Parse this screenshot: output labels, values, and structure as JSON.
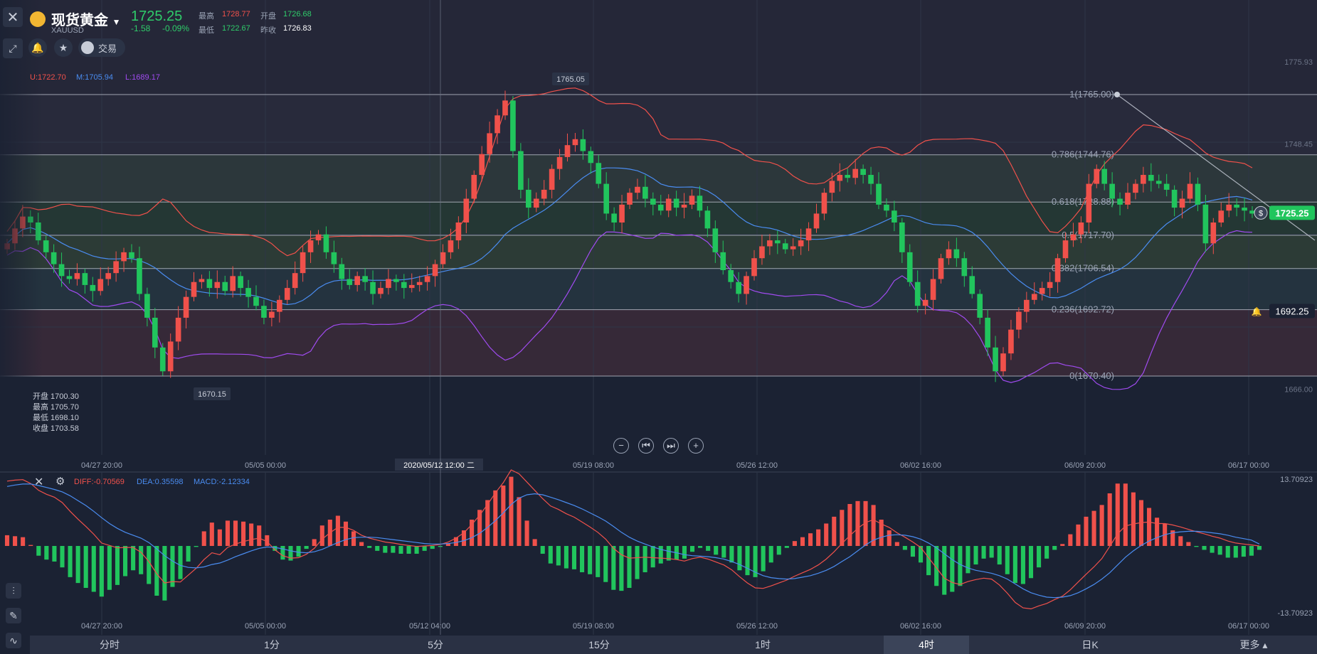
{
  "header": {
    "title": "现货黄金",
    "symbol": "XAUUSD",
    "last_price": "1725.25",
    "change": "-1.58",
    "change_pct": "-0.09%",
    "high_label": "最高",
    "high_value": "1728.77",
    "low_label": "最低",
    "low_value": "1722.67",
    "open_label": "开盘",
    "open_value": "1726.68",
    "prev_close_label": "昨收",
    "prev_close_value": "1726.83",
    "trade_label": "交易"
  },
  "bollinger_legend": {
    "u": "U:1722.70",
    "m": "M:1705.94",
    "l": "L:1689.17"
  },
  "ohlc_box": {
    "open": "开盘 1700.30",
    "high": "最高 1705.70",
    "low": "最低 1698.10",
    "close": "收盘 1703.58"
  },
  "macd_legend": {
    "diff": "DIFF:-0.70569",
    "dea": "DEA:0.35598",
    "macd": "MACD:-2.12334"
  },
  "tabs": [
    "分时",
    "1分",
    "5分",
    "15分",
    "1时",
    "4时",
    "日K",
    "更多"
  ],
  "active_tab": "4时",
  "colors": {
    "up": "#f0514b",
    "down": "#21c55d",
    "upper_band": "#f0514b",
    "mid_band": "#4a8cf0",
    "lower_band": "#a04bf0",
    "price_tag": "#21c55d"
  },
  "chart_data": {
    "type": "candlestick",
    "price_axis": {
      "ylim": [
        1660,
        1778
      ],
      "ticks": [
        "1775.93",
        "1748.45",
        "1666.00"
      ]
    },
    "x_ticks": [
      "04/27 20:00",
      "05/05 00:00",
      "05/19 08:00",
      "05/26 12:00",
      "06/02 16:00",
      "06/09 20:00",
      "06/17 00:00"
    ],
    "macd_x_ticks": [
      "04/27 20:00",
      "05/05 00:00",
      "05/12 04:00",
      "05/19 08:00",
      "05/26 12:00",
      "06/02 16:00",
      "06/09 20:00",
      "06/17 00:00"
    ],
    "crosshair_time": "2020/05/12 12:00 二",
    "fibonacci": [
      {
        "label": "1(1765.00)",
        "value": 1765.0
      },
      {
        "label": "0.786(1744.76)",
        "value": 1744.76
      },
      {
        "label": "0.618(1728.88)",
        "value": 1728.88
      },
      {
        "label": "0.5(1717.70)",
        "value": 1717.7
      },
      {
        "label": "0.382(1706.54)",
        "value": 1706.54
      },
      {
        "label": "0.236(1692.72)",
        "value": 1692.72
      },
      {
        "label": "0(1670.40)",
        "value": 1670.4
      }
    ],
    "annotations": {
      "high_label": "1765.05",
      "low_label": "1670.15",
      "last_price_tag": "1725.25",
      "alert_price_tag": "1692.25"
    },
    "close": [
      1715,
      1720,
      1724,
      1722,
      1716,
      1712,
      1708,
      1704,
      1703,
      1705,
      1701,
      1699,
      1703,
      1705,
      1709,
      1712,
      1710,
      1698,
      1690,
      1680,
      1672,
      1682,
      1690,
      1697,
      1702,
      1703,
      1700,
      1702,
      1699,
      1704,
      1700,
      1697,
      1694,
      1690,
      1692,
      1696,
      1700,
      1705,
      1712,
      1716,
      1718,
      1712,
      1708,
      1703,
      1701,
      1704,
      1702,
      1698,
      1700,
      1703,
      1702,
      1700,
      1701,
      1702,
      1704,
      1708,
      1712,
      1716,
      1722,
      1730,
      1738,
      1745,
      1752,
      1758,
      1763,
      1746,
      1733,
      1727,
      1730,
      1733,
      1740,
      1744,
      1748,
      1750,
      1746,
      1742,
      1735,
      1725,
      1722,
      1728,
      1732,
      1734,
      1730,
      1728,
      1726,
      1730,
      1727,
      1728,
      1731,
      1726,
      1720,
      1712,
      1706,
      1702,
      1698,
      1704,
      1710,
      1714,
      1716,
      1715,
      1713,
      1714,
      1716,
      1720,
      1725,
      1732,
      1736,
      1738,
      1737,
      1740,
      1738,
      1735,
      1728,
      1726,
      1722,
      1712,
      1702,
      1694,
      1696,
      1703,
      1710,
      1713,
      1710,
      1704,
      1698,
      1690,
      1680,
      1672,
      1678,
      1686,
      1692,
      1696,
      1698,
      1700,
      1702,
      1710,
      1716,
      1718,
      1722,
      1735,
      1740,
      1735,
      1730,
      1728,
      1732,
      1735,
      1738,
      1736,
      1735,
      1733,
      1727,
      1730,
      1735,
      1728,
      1715,
      1722,
      1726,
      1728,
      1727,
      1726,
      1725
    ],
    "diff": [
      13.3,
      13.5,
      13.6,
      12.8,
      11.4,
      10.6,
      10.0,
      8.9,
      7.1,
      5.5,
      4.0,
      2.4,
      0.6,
      0.1,
      -0.4,
      -0.3,
      -0.3,
      -1.3,
      -3.2,
      -5.7,
      -7.6,
      -7.3,
      -7.4,
      -6.0,
      -4.6,
      -2.8,
      -1.4,
      -1.8,
      -0.3,
      0.4,
      0.9,
      1.3,
      1.6,
      0.9,
      -0.8,
      -2.0,
      -2.5,
      -2.4,
      -1.7,
      -0.5,
      1.4,
      2.7,
      3.8,
      3.8,
      3.2,
      2.2,
      1.6,
      1.2,
      0.8,
      0.6,
      0.3,
      0.1,
      -0.1,
      -0.0,
      0.1,
      0.3,
      0.8,
      1.6,
      2.7,
      4.4,
      6.3,
      8.5,
      10.9,
      13.0,
      15.6,
      14.8,
      13.1,
      11.4,
      9.7,
      8.2,
      7.5,
      6.6,
      5.9,
      4.9,
      3.9,
      2.8,
      1.4,
      -0.5,
      -1.8,
      -2.5,
      -2.4,
      -2.3,
      -2.4,
      -2.5,
      -2.6,
      -2.8,
      -3.1,
      -2.6,
      -2.3,
      -2.7,
      -3.3,
      -3.9,
      -4.9,
      -6.3,
      -7.6,
      -8.6,
      -8.7,
      -8.2,
      -7.6,
      -7.0,
      -6.2,
      -5.5,
      -4.8,
      -3.9,
      -2.7,
      -1.2,
      0.5,
      2.1,
      3.6,
      4.8,
      5.4,
      4.5,
      3.8,
      2.7,
      1.8,
      0.8,
      -0.3,
      -2.4,
      -4.5,
      -6.6,
      -7.5,
      -7.9,
      -7.3,
      -6.9,
      -6.6,
      -6.8,
      -8.0,
      -9.7,
      -11.6,
      -12.7,
      -12.9,
      -12.3,
      -11.8,
      -11.0,
      -10.3,
      -9.0,
      -7.4,
      -5.8,
      -4.3,
      -2.6,
      -0.1,
      2.5,
      4.1,
      4.5,
      4.8,
      4.9,
      4.6,
      4.6,
      4.3,
      3.9,
      3.4,
      2.9,
      2.5,
      2.0,
      1.6,
      1.0,
      0.6,
      0.4,
      0.2,
      0.0
    ],
    "dea": [
      12.2,
      12.5,
      12.7,
      12.7,
      12.4,
      12.0,
      11.6,
      11.1,
      10.3,
      9.3,
      8.3,
      7.1,
      5.8,
      4.6,
      3.6,
      2.8,
      2.2,
      1.6,
      0.7,
      -0.6,
      -2.0,
      -3.1,
      -4.0,
      -4.4,
      -4.5,
      -4.3,
      -3.8,
      -3.5,
      -2.9,
      -2.2,
      -1.6,
      -1.0,
      -0.5,
      -0.2,
      -0.3,
      -0.6,
      -1.0,
      -1.3,
      -1.4,
      -1.2,
      -0.7,
      -0.0,
      0.7,
      1.3,
      1.7,
      1.8,
      1.8,
      1.7,
      1.5,
      1.3,
      1.1,
      0.9,
      0.7,
      0.5,
      0.4,
      0.4,
      0.5,
      0.7,
      1.1,
      1.7,
      2.6,
      3.8,
      5.2,
      6.8,
      8.5,
      9.8,
      10.5,
      10.7,
      10.5,
      10.0,
      9.5,
      8.9,
      8.3,
      7.6,
      6.8,
      6.0,
      5.1,
      4.0,
      2.8,
      1.8,
      1.0,
      0.4,
      -0.2,
      -0.7,
      -1.1,
      -1.4,
      -1.8,
      -2.0,
      -2.1,
      -2.2,
      -2.4,
      -2.7,
      -3.2,
      -3.8,
      -4.6,
      -5.4,
      -6.1,
      -6.5,
      -6.7,
      -6.8,
      -6.7,
      -6.4,
      -6.1,
      -5.6,
      -5.0,
      -4.2,
      -3.2,
      -2.2,
      -1.0,
      0.2,
      1.2,
      1.8,
      2.2,
      2.3,
      2.2,
      1.9,
      1.4,
      0.6,
      -0.4,
      -1.6,
      -2.8,
      -3.8,
      -4.5,
      -5.0,
      -5.3,
      -5.6,
      -6.1,
      -6.8,
      -7.8,
      -8.8,
      -9.6,
      -10.1,
      -10.5,
      -10.6,
      -10.5,
      -10.2,
      -9.6,
      -8.8,
      -7.9,
      -6.8,
      -5.5,
      -3.9,
      -2.3,
      -1.0,
      0.1,
      1.0,
      1.7,
      2.3,
      2.7,
      2.9,
      3.0,
      3.0,
      2.9,
      2.7,
      2.5,
      2.2,
      1.8,
      1.5,
      1.2,
      0.4
    ],
    "macd_axis": {
      "top_label": "13.70923",
      "bottom_label": "-13.70923",
      "ylim": [
        -13.70923,
        13.70923
      ]
    }
  }
}
